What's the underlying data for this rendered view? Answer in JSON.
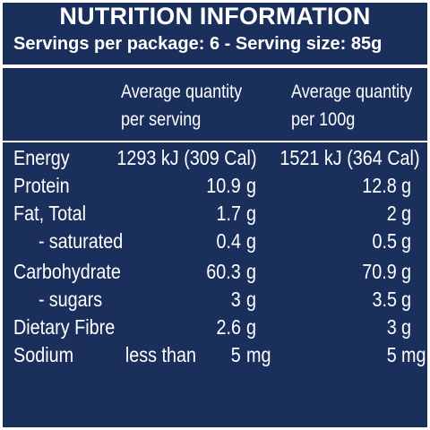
{
  "panel": {
    "title": "NUTRITION INFORMATION",
    "servings_line": "Servings per package: 6 - Serving size: 85g"
  },
  "columns": {
    "serving_line1": "Average quantity",
    "serving_line2": "per serving",
    "per100_line1": "Average quantity",
    "per100_line2": "per 100g"
  },
  "rows": {
    "energy": {
      "label": "Energy",
      "serving": "1293 kJ (309 Cal)",
      "per100": "1521 kJ (364 Cal)"
    },
    "protein": {
      "label": "Protein",
      "serving_value": "10.9",
      "serving_unit": "g",
      "per100_value": "12.8",
      "per100_unit": "g"
    },
    "fat_total": {
      "label": "Fat, Total",
      "serving_value": "1.7",
      "serving_unit": "g",
      "per100_value": "2",
      "per100_unit": "g"
    },
    "saturated": {
      "dash": "-",
      "label": "saturated",
      "serving_value": "0.4",
      "serving_unit": "g",
      "per100_value": "0.5",
      "per100_unit": "g"
    },
    "carbohydrate": {
      "label": "Carbohydrate",
      "serving_value": "60.3",
      "serving_unit": "g",
      "per100_value": "70.9",
      "per100_unit": "g"
    },
    "sugars": {
      "dash": "-",
      "label": "sugars",
      "serving_value": "3",
      "serving_unit": "g",
      "per100_value": "3.5",
      "per100_unit": "g"
    },
    "fibre": {
      "label": "Dietary Fibre",
      "serving_value": "2.6",
      "serving_unit": "g",
      "per100_value": "3",
      "per100_unit": "g"
    },
    "sodium": {
      "label": "Sodium",
      "serving_prefix": "less than",
      "serving_value": "5",
      "serving_unit": "mg",
      "per100_value": "5",
      "per100_unit": "mg"
    }
  },
  "colors": {
    "background": "#1b2f5c",
    "text": "#ffffff"
  }
}
